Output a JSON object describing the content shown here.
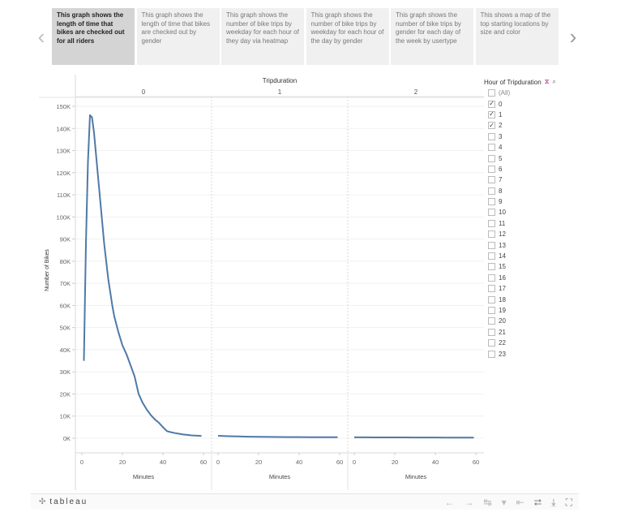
{
  "story": {
    "points": [
      {
        "label": "This graph shows the length of time that bikes are checked out for all riders",
        "active": true
      },
      {
        "label": "This graph shows the length of time that bikes are checked out by gender",
        "active": false
      },
      {
        "label": "This graph shows the number of bike trips by weekday for each hour of they day via heatmap",
        "active": false
      },
      {
        "label": "This graph shows the number of bike trips by weekday for each hour of the day by gender",
        "active": false
      },
      {
        "label": "This graph shows the number of bike trips by gender for each day of the week by usertype",
        "active": false
      },
      {
        "label": "This shows a map of the top starting locations by size and color",
        "active": false
      }
    ],
    "prev_icon": "chevron-left-icon",
    "next_icon": "chevron-right-icon"
  },
  "chart_data": {
    "type": "line",
    "title": "Tripduration",
    "panels": [
      "0",
      "1",
      "2"
    ],
    "xlabel": "Minutes",
    "ylabel": "Number of Bikes",
    "xlim": [
      0,
      60
    ],
    "ylim": [
      0,
      150000
    ],
    "y_ticks": [
      0,
      10000,
      20000,
      30000,
      40000,
      50000,
      60000,
      70000,
      80000,
      90000,
      100000,
      110000,
      120000,
      130000,
      140000,
      150000
    ],
    "y_tick_labels": [
      "0K",
      "10K",
      "20K",
      "30K",
      "40K",
      "50K",
      "60K",
      "70K",
      "80K",
      "90K",
      "100K",
      "110K",
      "120K",
      "130K",
      "140K",
      "150K"
    ],
    "x_ticks": [
      0,
      20,
      40,
      60
    ],
    "color": "#4e79a7",
    "series": [
      {
        "panel": "0",
        "x": [
          1,
          2,
          3,
          4,
          5,
          6,
          7,
          8,
          9,
          10,
          11,
          12,
          13,
          14,
          15,
          16,
          18,
          20,
          22,
          24,
          26,
          28,
          30,
          32,
          34,
          36,
          38,
          40,
          42,
          44,
          46,
          48,
          50,
          52,
          54,
          56,
          58,
          59
        ],
        "y": [
          35000,
          88000,
          125000,
          146000,
          145000,
          138000,
          128000,
          118000,
          108000,
          98000,
          88000,
          80000,
          72000,
          66000,
          60000,
          55000,
          48000,
          42000,
          38000,
          33000,
          28000,
          20000,
          16000,
          13000,
          10500,
          8500,
          7000,
          5000,
          3200,
          2700,
          2300,
          2000,
          1700,
          1500,
          1300,
          1200,
          1100,
          1000
        ]
      },
      {
        "panel": "1",
        "x": [
          0,
          5,
          10,
          15,
          20,
          25,
          30,
          35,
          40,
          45,
          50,
          55,
          59
        ],
        "y": [
          1100,
          900,
          800,
          700,
          650,
          600,
          550,
          520,
          500,
          480,
          460,
          450,
          440
        ]
      },
      {
        "panel": "2",
        "x": [
          0,
          5,
          10,
          15,
          20,
          25,
          30,
          35,
          40,
          45,
          50,
          55,
          59
        ],
        "y": [
          400,
          390,
          380,
          370,
          360,
          350,
          340,
          330,
          320,
          310,
          300,
          290,
          280
        ]
      }
    ]
  },
  "filter": {
    "title": "Hour of Tripduration",
    "items": [
      {
        "label": "(All)",
        "checked": false
      },
      {
        "label": "0",
        "checked": true
      },
      {
        "label": "1",
        "checked": true
      },
      {
        "label": "2",
        "checked": true
      },
      {
        "label": "3",
        "checked": false
      },
      {
        "label": "4",
        "checked": false
      },
      {
        "label": "5",
        "checked": false
      },
      {
        "label": "6",
        "checked": false
      },
      {
        "label": "7",
        "checked": false
      },
      {
        "label": "8",
        "checked": false
      },
      {
        "label": "9",
        "checked": false
      },
      {
        "label": "10",
        "checked": false
      },
      {
        "label": "11",
        "checked": false
      },
      {
        "label": "12",
        "checked": false
      },
      {
        "label": "13",
        "checked": false
      },
      {
        "label": "14",
        "checked": false
      },
      {
        "label": "15",
        "checked": false
      },
      {
        "label": "16",
        "checked": false
      },
      {
        "label": "17",
        "checked": false
      },
      {
        "label": "18",
        "checked": false
      },
      {
        "label": "19",
        "checked": false
      },
      {
        "label": "20",
        "checked": false
      },
      {
        "label": "21",
        "checked": false
      },
      {
        "label": "22",
        "checked": false
      },
      {
        "label": "23",
        "checked": false
      }
    ]
  },
  "footer": {
    "logo": "tableau",
    "tools": [
      "undo-icon",
      "redo-icon",
      "revert-icon",
      "dropdown-icon",
      "reset-icon",
      "share-icon",
      "download-icon",
      "fullscreen-icon"
    ]
  }
}
